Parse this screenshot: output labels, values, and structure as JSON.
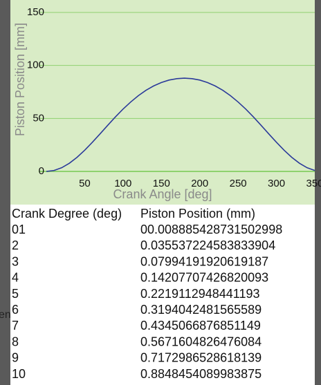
{
  "chart_data": {
    "type": "line",
    "x_label": "Crank Angle [deg]",
    "y_label": "Piston Position [mm]",
    "x": [
      0,
      10,
      20,
      30,
      40,
      50,
      60,
      70,
      80,
      90,
      100,
      110,
      120,
      130,
      140,
      150,
      160,
      170,
      180,
      190,
      200,
      210,
      220,
      230,
      240,
      250,
      260,
      270,
      280,
      290,
      300,
      310,
      320,
      330,
      340,
      350
    ],
    "series": [
      {
        "color": "#2b3a9a",
        "values": [
          0,
          0.9,
          3.5,
          7.7,
          13.3,
          20.0,
          27.5,
          35.4,
          43.5,
          51.4,
          58.8,
          65.5,
          71.5,
          76.6,
          80.7,
          83.9,
          86.2,
          87.5,
          88.0,
          87.5,
          86.2,
          83.9,
          80.7,
          76.6,
          71.5,
          65.5,
          58.8,
          51.4,
          43.5,
          35.4,
          27.5,
          20.0,
          13.3,
          7.7,
          3.5,
          0.9
        ]
      }
    ],
    "xlim": [
      0,
      350
    ],
    "ylim": [
      0,
      150
    ],
    "xticks": [
      50,
      100,
      150,
      200,
      250,
      300,
      350
    ],
    "yticks": [
      0,
      50,
      100,
      150
    ],
    "grid": true,
    "background": "#d9ecc6",
    "grid_color": "#8fd16f"
  },
  "table": {
    "header": [
      "Crank Degree (deg)",
      "Piston Position (mm)"
    ],
    "rows": [
      [
        "01",
        "00.008885428731502998"
      ],
      [
        "2",
        "0.035537224583833904"
      ],
      [
        "3",
        "0.07994191920619187"
      ],
      [
        "4",
        "0.14207707426820093"
      ],
      [
        "5",
        "0.2219112948441193"
      ],
      [
        "6",
        "0.3194042481565589"
      ],
      [
        "7",
        "0.4345066876851149"
      ],
      [
        "8",
        "0.5671604826476084"
      ],
      [
        "9",
        "0.7172986528618139"
      ],
      [
        "10",
        "0.8848454089983875"
      ]
    ]
  },
  "side_text": "en"
}
